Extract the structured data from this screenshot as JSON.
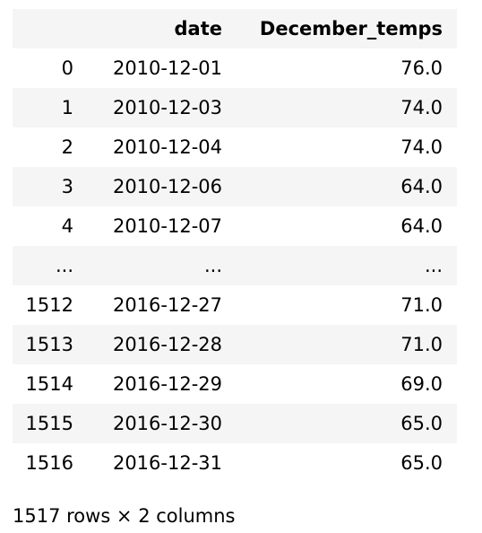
{
  "table": {
    "index_header": "",
    "columns": [
      "date",
      "December_temps"
    ],
    "rows": [
      {
        "index": "0",
        "date": "2010-12-01",
        "temp": "76.0"
      },
      {
        "index": "1",
        "date": "2010-12-03",
        "temp": "74.0"
      },
      {
        "index": "2",
        "date": "2010-12-04",
        "temp": "74.0"
      },
      {
        "index": "3",
        "date": "2010-12-06",
        "temp": "64.0"
      },
      {
        "index": "4",
        "date": "2010-12-07",
        "temp": "64.0"
      },
      {
        "index": "...",
        "date": "...",
        "temp": "..."
      },
      {
        "index": "1512",
        "date": "2016-12-27",
        "temp": "71.0"
      },
      {
        "index": "1513",
        "date": "2016-12-28",
        "temp": "71.0"
      },
      {
        "index": "1514",
        "date": "2016-12-29",
        "temp": "69.0"
      },
      {
        "index": "1515",
        "date": "2016-12-30",
        "temp": "65.0"
      },
      {
        "index": "1516",
        "date": "2016-12-31",
        "temp": "65.0"
      }
    ]
  },
  "footer": "1517 rows × 2 columns"
}
